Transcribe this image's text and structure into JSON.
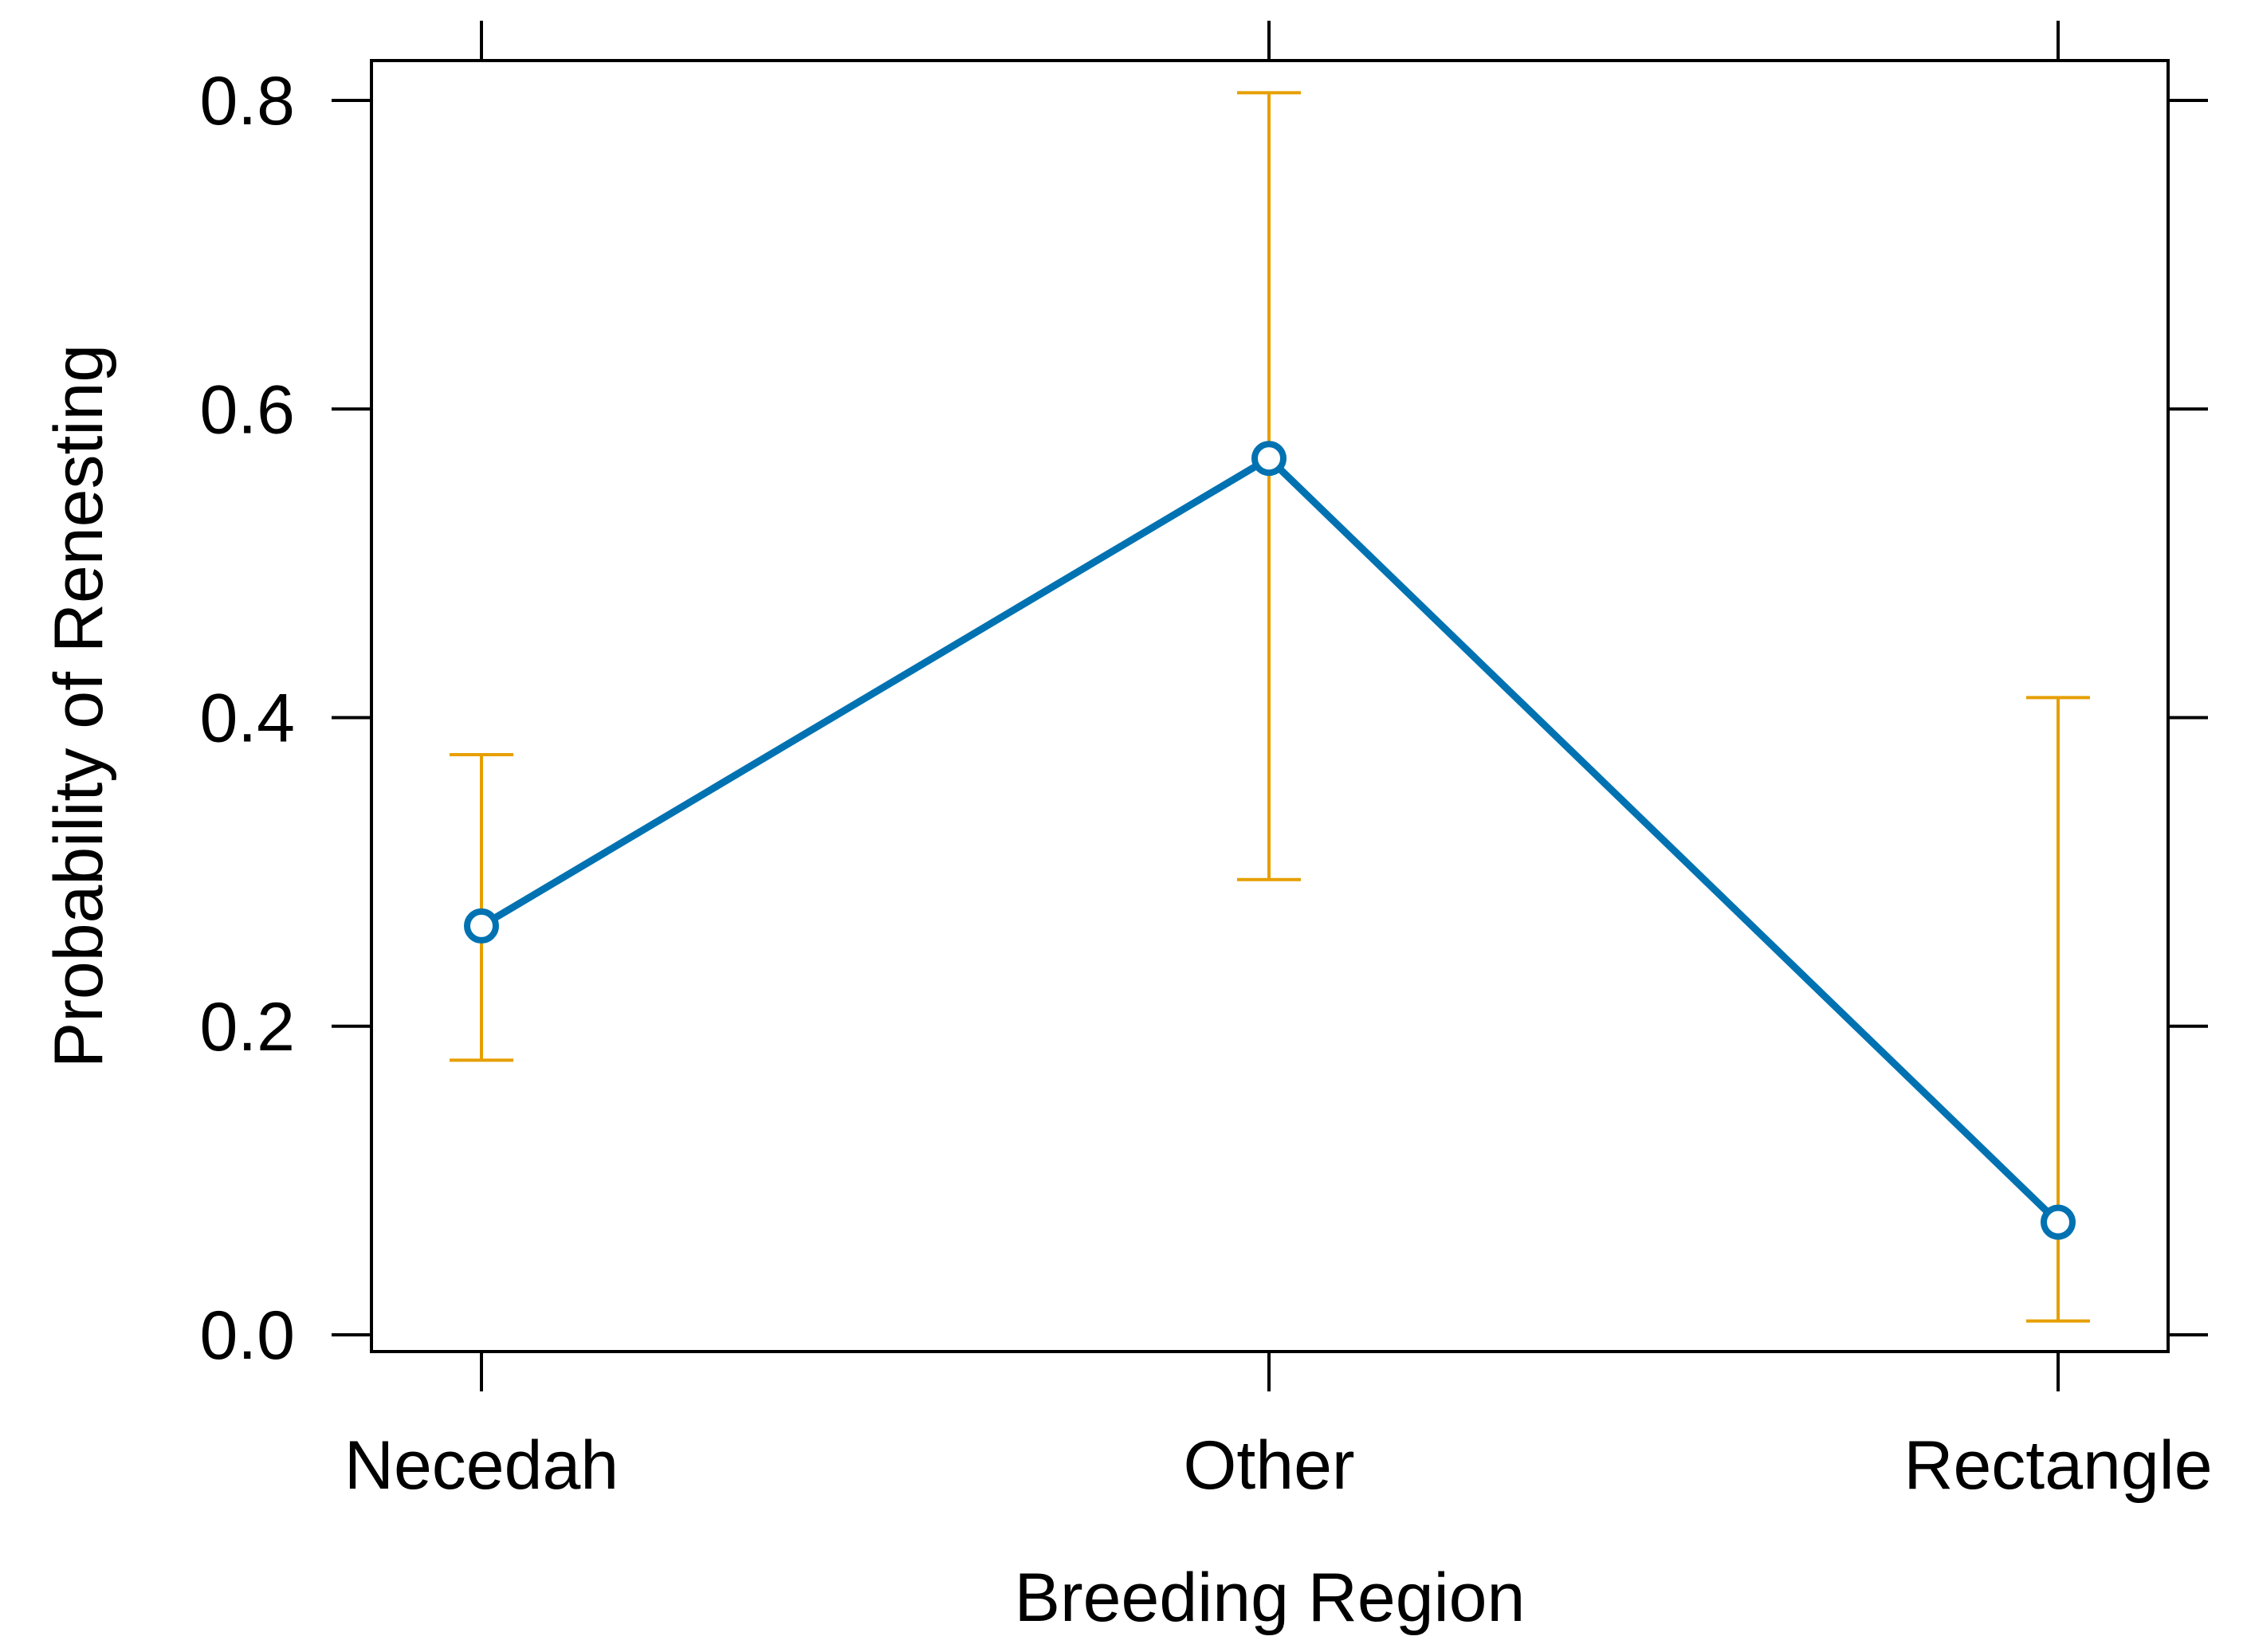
{
  "chart_data": {
    "type": "line",
    "title": "",
    "xlabel": "Breeding Region",
    "ylabel": "Probability of Renesting",
    "categories": [
      "Necedah",
      "Other",
      "Rectangle"
    ],
    "series": [
      {
        "name": "Probability of Renesting",
        "values": [
          0.265,
          0.568,
          0.073
        ],
        "lower": [
          0.178,
          0.295,
          0.009
        ],
        "upper": [
          0.376,
          0.805,
          0.413
        ]
      }
    ],
    "ylim": [
      0.0,
      0.8
    ],
    "yticks": [
      0.0,
      0.2,
      0.4,
      0.6,
      0.8
    ],
    "ytick_labels": [
      "0.0",
      "0.2",
      "0.4",
      "0.6",
      "0.8"
    ],
    "grid": false,
    "legend": "none",
    "colors": {
      "line": "#0072B2",
      "errorbar": "#E69F00",
      "axis": "#000000"
    }
  }
}
